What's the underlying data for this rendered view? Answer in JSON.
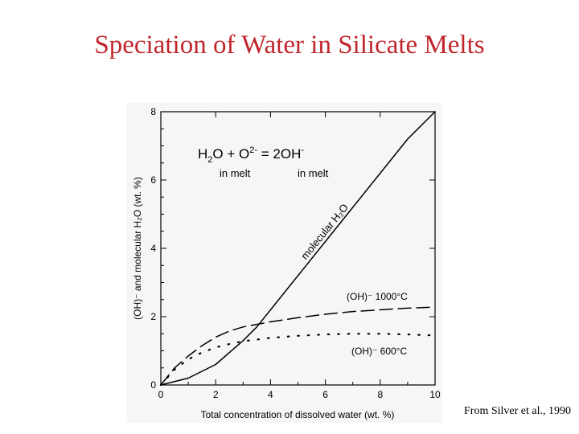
{
  "slide": {
    "title": "Speciation of Water in Silicate Melts",
    "source": "From Silver et al., 1990"
  },
  "reaction": {
    "h": "H",
    "sub2": "2",
    "o_plus": "O + O",
    "sup_2minus": "2-",
    "eq": " = 2OH",
    "sup_minus": "-",
    "in_melt_1": "in melt",
    "in_melt_2": "in melt"
  },
  "chart_data": {
    "type": "line",
    "xlabel": "Total concentration of dissolved water (wt. %)",
    "ylabel": "(OH)⁻ and molecular H₂O (wt. %)",
    "xlim": [
      0,
      10
    ],
    "ylim": [
      0,
      8
    ],
    "xticks": [
      0,
      2,
      4,
      6,
      8,
      10
    ],
    "yticks": [
      0,
      2,
      4,
      6,
      8
    ],
    "grid": false,
    "series": [
      {
        "name": "molecular H₂O",
        "style": "solid",
        "x": [
          0,
          1,
          2,
          3,
          3.5,
          4,
          5,
          6,
          7,
          8,
          9,
          10
        ],
        "y": [
          0,
          0.2,
          0.6,
          1.3,
          1.7,
          2.2,
          3.2,
          4.2,
          5.2,
          6.2,
          7.2,
          8.0
        ]
      },
      {
        "name": "(OH)⁻ 1000°C",
        "style": "dashed",
        "x": [
          0,
          0.5,
          1,
          1.5,
          2,
          2.5,
          3,
          4,
          5,
          6,
          7,
          8,
          9,
          10
        ],
        "y": [
          0,
          0.5,
          0.85,
          1.15,
          1.4,
          1.58,
          1.7,
          1.85,
          1.97,
          2.07,
          2.15,
          2.2,
          2.25,
          2.28
        ]
      },
      {
        "name": "(OH)⁻ 600°C",
        "style": "dotted",
        "x": [
          0,
          0.5,
          1,
          1.5,
          2,
          2.5,
          3,
          4,
          5,
          6,
          7,
          8,
          9,
          10
        ],
        "y": [
          0,
          0.45,
          0.75,
          0.95,
          1.1,
          1.2,
          1.28,
          1.38,
          1.44,
          1.48,
          1.5,
          1.5,
          1.48,
          1.45
        ]
      }
    ],
    "annotations": {
      "molecular": "molecular H₂O",
      "oh1000": "(OH)⁻ 1000°C",
      "oh600": "(OH)⁻ 600°C"
    }
  }
}
